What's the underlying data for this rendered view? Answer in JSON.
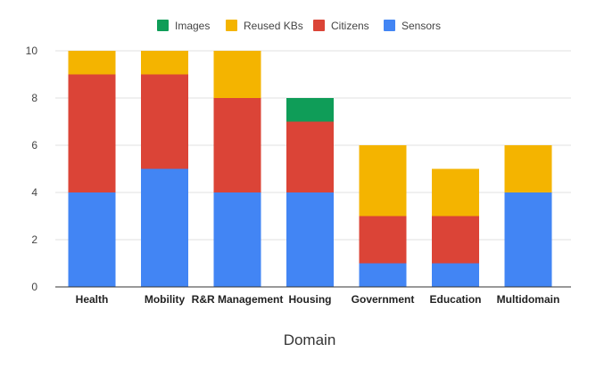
{
  "chart_data": {
    "type": "bar",
    "stacked": true,
    "categories": [
      "Health",
      "Mobility",
      "R&R Management",
      "Housing",
      "Government",
      "Education",
      "Multidomain"
    ],
    "series": [
      {
        "name": "Sensors",
        "values": [
          4,
          5,
          4,
          4,
          1,
          1,
          4
        ],
        "color": "#4285f4"
      },
      {
        "name": "Citizens",
        "values": [
          5,
          4,
          4,
          3,
          2,
          2,
          0
        ],
        "color": "#db4437"
      },
      {
        "name": "Reused KBs",
        "values": [
          1,
          1,
          2,
          0,
          3,
          2,
          2
        ],
        "color": "#f4b400"
      },
      {
        "name": "Images",
        "values": [
          0,
          0,
          0,
          1,
          0,
          0,
          0
        ],
        "color": "#0f9d58"
      }
    ],
    "legend_order": [
      "Images",
      "Reused KBs",
      "Citizens",
      "Sensors"
    ],
    "xlabel": "Domain",
    "ylabel": "",
    "ylim": [
      0,
      10
    ],
    "yticks": [
      "0",
      "2",
      "4",
      "6",
      "8",
      "10"
    ],
    "grid": true,
    "legend_position": "top"
  }
}
